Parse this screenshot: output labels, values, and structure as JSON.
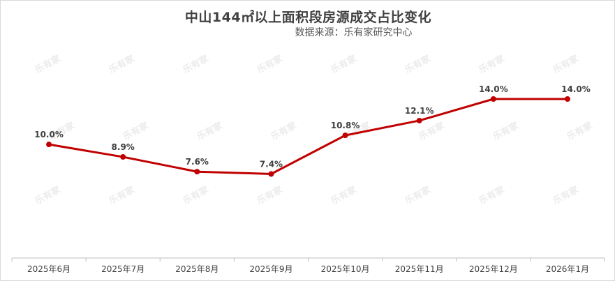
{
  "title": "中山144㎡以上面积段房源成交占比变化",
  "source": "数据来源：乐有家研究中心",
  "watermark_text": "乐有家",
  "colors": {
    "line": "#c00000",
    "axis": "#bfbfbf",
    "text": "#404040"
  },
  "chart_data": {
    "type": "line",
    "title": "中山144㎡以上面积段房源成交占比变化",
    "categories": [
      "2025年6月",
      "2025年7月",
      "2025年8月",
      "2025年9月",
      "2025年10月",
      "2025年11月",
      "2025年12月",
      "2026年1月"
    ],
    "series": [
      {
        "values": [
          10.0,
          8.9,
          7.6,
          7.4,
          10.8,
          12.1,
          14.0,
          14.0
        ],
        "data_labels": [
          "10.0%",
          "8.9%",
          "7.6%",
          "7.4%",
          "10.8%",
          "12.1%",
          "14.0%",
          "14.0%"
        ]
      }
    ],
    "ylim": [
      0,
      17.5
    ],
    "y_axis_visible": false,
    "grid": false,
    "legend": "none",
    "markers": true
  }
}
